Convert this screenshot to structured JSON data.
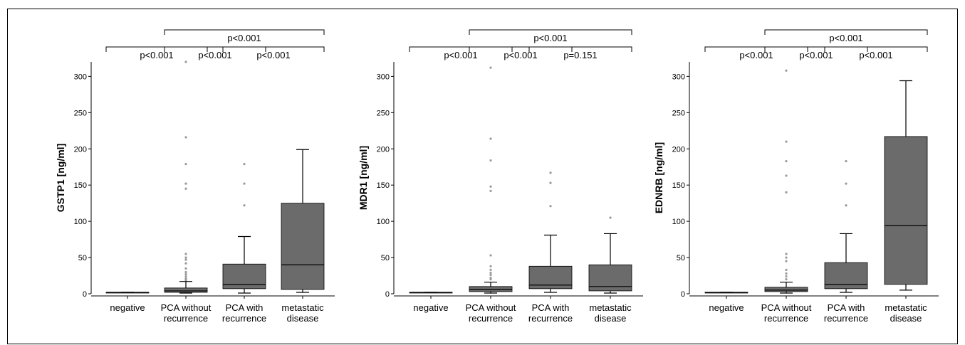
{
  "chart_data": [
    {
      "type": "box",
      "ylabel": "GSTP1 [ng/ml]",
      "ylim": [
        0,
        320
      ],
      "yticks": [
        0,
        50,
        100,
        150,
        200,
        250,
        300
      ],
      "categories": [
        "negative",
        "PCA without recurrence",
        "PCA with recurrence",
        "metastatic disease"
      ],
      "category_lines": [
        [
          "negative"
        ],
        [
          "PCA without",
          "recurrence"
        ],
        [
          "PCA with",
          "recurrence"
        ],
        [
          "metastatic",
          "disease"
        ]
      ],
      "boxes": [
        {
          "whisker_low": 2,
          "q1": 2,
          "median": 2,
          "q3": 2,
          "whisker_high": 2,
          "outliers": []
        },
        {
          "whisker_low": 1,
          "q1": 2,
          "median": 4,
          "q3": 8,
          "whisker_high": 17,
          "outliers": [
            320,
            216,
            179,
            152,
            145,
            55,
            50,
            47,
            42,
            35,
            30,
            27,
            24,
            21,
            19
          ]
        },
        {
          "whisker_low": 1,
          "q1": 7,
          "median": 13,
          "q3": 41,
          "whisker_high": 79,
          "outliers": [
            179,
            152,
            122
          ]
        },
        {
          "whisker_low": 2,
          "q1": 6,
          "median": 40,
          "q3": 125,
          "whisker_high": 199,
          "outliers": []
        }
      ],
      "comparisons": [
        {
          "from": 0,
          "to": 1,
          "label": "p<0.001",
          "level": 0
        },
        {
          "from": 1,
          "to": 2,
          "label": "p<0.001",
          "level": 0
        },
        {
          "from": 2,
          "to": 3,
          "label": "p<0.001",
          "level": 0
        },
        {
          "from": 1,
          "to": 3,
          "label": "p<0.001",
          "level": 1
        }
      ]
    },
    {
      "type": "box",
      "ylabel": "MDR1 [ng/ml]",
      "ylim": [
        0,
        320
      ],
      "yticks": [
        0,
        50,
        100,
        150,
        200,
        250,
        300
      ],
      "categories": [
        "negative",
        "PCA without recurrence",
        "PCA with recurrence",
        "metastatic disease"
      ],
      "category_lines": [
        [
          "negative"
        ],
        [
          "PCA without",
          "recurrence"
        ],
        [
          "PCA with",
          "recurrence"
        ],
        [
          "metastatic",
          "disease"
        ]
      ],
      "boxes": [
        {
          "whisker_low": 2,
          "q1": 2,
          "median": 2,
          "q3": 2,
          "whisker_high": 2,
          "outliers": []
        },
        {
          "whisker_low": 1,
          "q1": 3,
          "median": 6,
          "q3": 10,
          "whisker_high": 16,
          "outliers": [
            312,
            214,
            184,
            148,
            142,
            53,
            38,
            33,
            29,
            26,
            22,
            20
          ]
        },
        {
          "whisker_low": 2,
          "q1": 7,
          "median": 12,
          "q3": 38,
          "whisker_high": 81,
          "outliers": [
            167,
            153,
            121
          ]
        },
        {
          "whisker_low": 1,
          "q1": 4,
          "median": 10,
          "q3": 40,
          "whisker_high": 83,
          "outliers": [
            105
          ]
        }
      ],
      "comparisons": [
        {
          "from": 0,
          "to": 1,
          "label": "p<0.001",
          "level": 0
        },
        {
          "from": 1,
          "to": 2,
          "label": "p<0.001",
          "level": 0
        },
        {
          "from": 2,
          "to": 3,
          "label": "p=0.151",
          "level": 0
        },
        {
          "from": 1,
          "to": 3,
          "label": "p<0.001",
          "level": 1
        }
      ]
    },
    {
      "type": "box",
      "ylabel": "EDNRB [ng/ml]",
      "ylim": [
        0,
        320
      ],
      "yticks": [
        0,
        50,
        100,
        150,
        200,
        250,
        300
      ],
      "categories": [
        "negative",
        "PCA without recurrence",
        "PCA with recurrence",
        "metastatic disease"
      ],
      "category_lines": [
        [
          "negative"
        ],
        [
          "PCA without",
          "recurrence"
        ],
        [
          "PCA with",
          "recurrence"
        ],
        [
          "metastatic",
          "disease"
        ]
      ],
      "boxes": [
        {
          "whisker_low": 2,
          "q1": 2,
          "median": 2,
          "q3": 2,
          "whisker_high": 2,
          "outliers": []
        },
        {
          "whisker_low": 1,
          "q1": 3,
          "median": 5,
          "q3": 9,
          "whisker_high": 16,
          "outliers": [
            308,
            210,
            183,
            163,
            140,
            55,
            50,
            45,
            33,
            28,
            24,
            20
          ]
        },
        {
          "whisker_low": 2,
          "q1": 7,
          "median": 13,
          "q3": 43,
          "whisker_high": 83,
          "outliers": [
            183,
            152,
            122
          ]
        },
        {
          "whisker_low": 5,
          "q1": 13,
          "median": 94,
          "q3": 217,
          "whisker_high": 294,
          "outliers": []
        }
      ],
      "comparisons": [
        {
          "from": 0,
          "to": 1,
          "label": "p<0.001",
          "level": 0
        },
        {
          "from": 1,
          "to": 2,
          "label": "p<0.001",
          "level": 0
        },
        {
          "from": 2,
          "to": 3,
          "label": "p<0.001",
          "level": 0
        },
        {
          "from": 1,
          "to": 3,
          "label": "p<0.001",
          "level": 1
        }
      ]
    }
  ]
}
